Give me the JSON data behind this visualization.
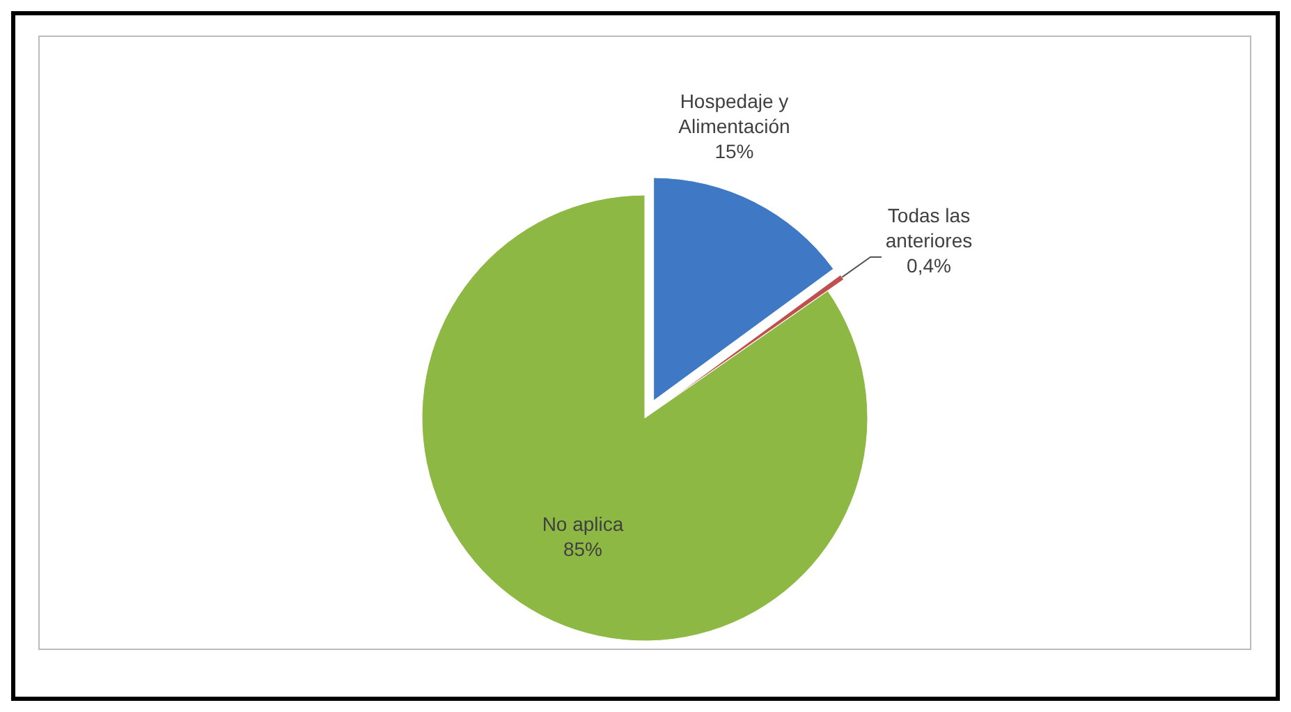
{
  "chart_data": {
    "type": "pie",
    "categories": [
      "Hospedaje y Alimentación",
      "Todas las anteriores",
      "No aplica"
    ],
    "values": [
      15,
      0.4,
      85
    ],
    "colors": [
      "#3f78c4",
      "#c0504d",
      "#8db843"
    ],
    "value_labels": [
      "15%",
      "0,4%",
      "85%"
    ]
  }
}
